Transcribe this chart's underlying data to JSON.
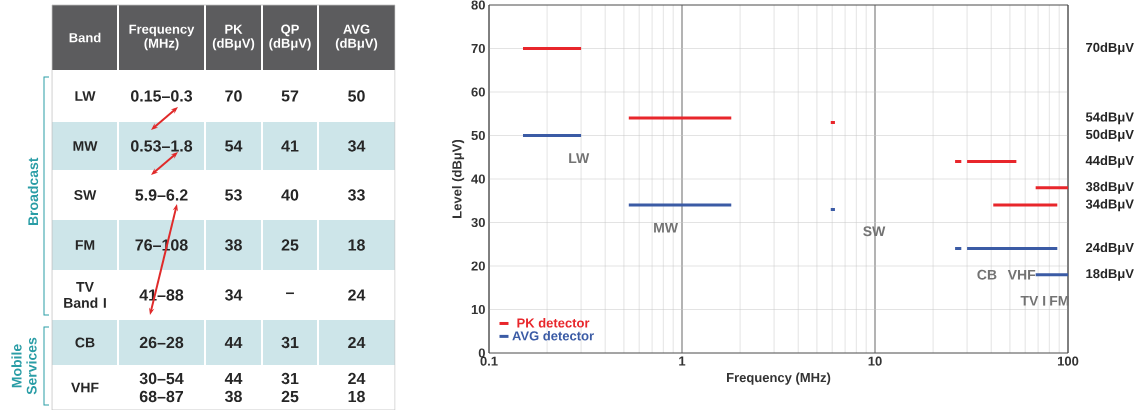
{
  "chart_data": [
    {
      "type": "other",
      "categories": [
        "Band",
        "Frequency (MHz)",
        "PK (dBμV)",
        "QP (dBμV)",
        "AVG (dBμV)"
      ],
      "annotations": [
        "LW",
        "0.15–0.3",
        "70",
        "57",
        "50",
        "MW",
        "0.53–1.8",
        "54",
        "41",
        "34",
        "SW",
        "5.9–6.2",
        "53",
        "40",
        "33",
        "FM",
        "76–108",
        "38",
        "25",
        "18",
        "TV Band I",
        "41–88",
        "34",
        "–",
        "24",
        "CB",
        "26–28",
        "44",
        "31",
        "24",
        "VHF",
        "30–54 68–87",
        "44 38",
        "31 25",
        "24 18",
        "Broadcast",
        "Mobile Services"
      ]
    },
    {
      "type": "line",
      "xlabel": "Frequency (MHz)",
      "ylabel": "Level (dBμV)",
      "log": "x",
      "xlim": [
        0.1,
        100
      ],
      "xticks": [
        0.1,
        1,
        10,
        100
      ],
      "ylim": [
        0,
        80
      ],
      "yticks": [
        0,
        10,
        20,
        30,
        40,
        50,
        60,
        70,
        80
      ],
      "y2lim": [
        0,
        80
      ],
      "y2ticks": [
        {
          "value": 70,
          "label": "70dBμV"
        },
        {
          "value": 54,
          "label": "54dBμV"
        },
        {
          "value": 50,
          "label": "50dBμV"
        },
        {
          "value": 44,
          "label": "44dBμV"
        },
        {
          "value": 38,
          "label": "38dBμV"
        },
        {
          "value": 34,
          "label": "34dBμV"
        },
        {
          "value": 24,
          "label": "24dBμV"
        },
        {
          "value": 18,
          "label": "18dBμV"
        }
      ],
      "grid": true,
      "legend": "bottom left",
      "series": [
        {
          "name": "PK detector",
          "color": "#e8262b",
          "x": [
            0.15,
            0.3,
            null,
            0.53,
            1.8,
            null,
            5.9,
            6.2,
            null,
            26,
            28,
            null,
            30,
            54,
            null,
            41,
            88,
            null,
            68,
            100
          ],
          "values": [
            70,
            70,
            null,
            54,
            54,
            null,
            53,
            53,
            null,
            44,
            44,
            null,
            44,
            44,
            null,
            34,
            34,
            null,
            38,
            38
          ]
        },
        {
          "name": "AVG detector",
          "color": "#3b5ba5",
          "x": [
            0.15,
            0.3,
            null,
            0.53,
            1.8,
            null,
            5.9,
            6.2,
            null,
            26,
            28,
            null,
            30,
            54,
            null,
            41,
            88,
            null,
            68,
            100
          ],
          "values": [
            50,
            50,
            null,
            34,
            34,
            null,
            33,
            33,
            null,
            24,
            24,
            null,
            24,
            24,
            null,
            24,
            24,
            null,
            18,
            18
          ]
        }
      ],
      "annotations": [
        "LW",
        "MW",
        "SW",
        "CB",
        "VHF",
        "TV I",
        "FM"
      ]
    }
  ]
}
